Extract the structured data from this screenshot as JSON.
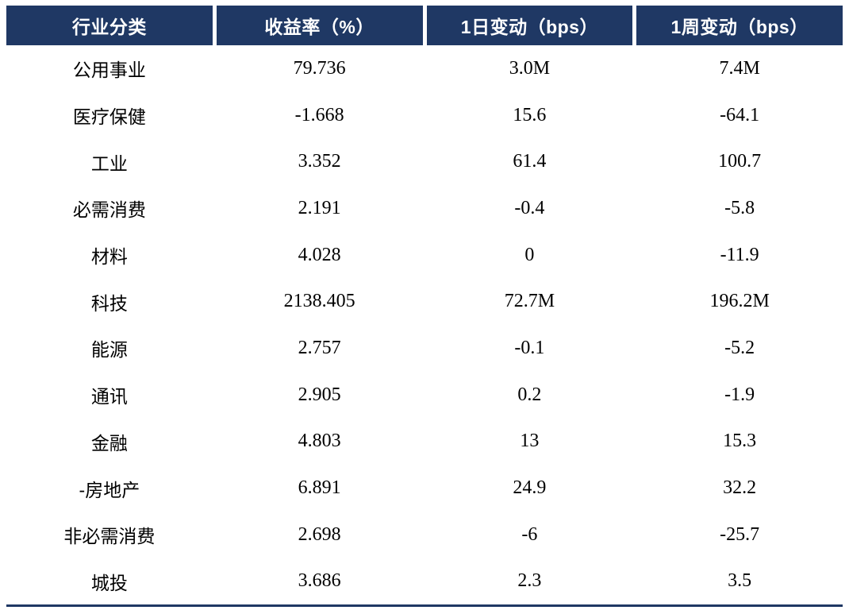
{
  "chart_data": {
    "type": "table",
    "columns": [
      "行业分类",
      "收益率（%）",
      "1日变动（bps）",
      "1周变动（bps）"
    ],
    "rows": [
      [
        "公用事业",
        "79.736",
        "3.0M",
        "7.4M"
      ],
      [
        "医疗保健",
        "-1.668",
        "15.6",
        "-64.1"
      ],
      [
        "工业",
        "3.352",
        "61.4",
        "100.7"
      ],
      [
        "必需消费",
        "2.191",
        "-0.4",
        "-5.8"
      ],
      [
        "材料",
        "4.028",
        "0",
        "-11.9"
      ],
      [
        "科技",
        "2138.405",
        "72.7M",
        "196.2M"
      ],
      [
        "能源",
        "2.757",
        "-0.1",
        "-5.2"
      ],
      [
        "通讯",
        "2.905",
        "0.2",
        "-1.9"
      ],
      [
        "金融",
        "4.803",
        "13",
        "15.3"
      ],
      [
        "-房地产",
        "6.891",
        "24.9",
        "32.2"
      ],
      [
        "非必需消费",
        "2.698",
        "-6",
        "-25.7"
      ],
      [
        "城投",
        "3.686",
        "2.3",
        "3.5"
      ]
    ]
  },
  "colors": {
    "header_bg": "#1F3864",
    "header_text": "#FFFFFF",
    "body_text": "#000000",
    "bottom_border": "#1F3864",
    "page_bg": "#FFFFFF"
  }
}
